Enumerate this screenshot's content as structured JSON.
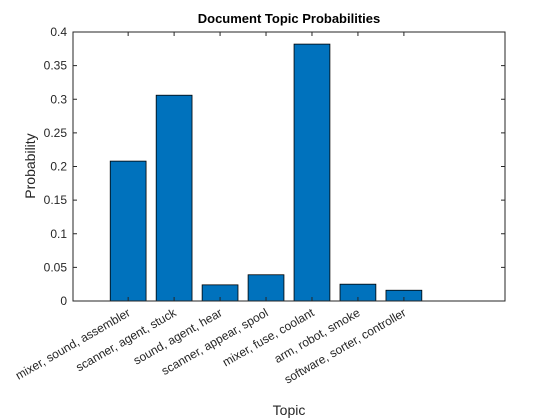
{
  "chart_data": {
    "type": "bar",
    "title": "Document Topic Probabilities",
    "xlabel": "Topic",
    "ylabel": "Probability",
    "categories": [
      "mixer, sound, assembler",
      "scanner, agent, stuck",
      "sound, agent, hear",
      "scanner, appear, spool",
      "mixer, fuse, coolant",
      "arm, robot, smoke",
      "software, sorter, controller"
    ],
    "values": [
      0.208,
      0.306,
      0.024,
      0.039,
      0.382,
      0.025,
      0.016
    ],
    "color": "#0072bd",
    "ylim": [
      0,
      0.4
    ],
    "yticks": [
      0,
      0.05,
      0.1,
      0.15,
      0.2,
      0.25,
      0.3,
      0.35,
      0.4
    ],
    "grid": false
  }
}
